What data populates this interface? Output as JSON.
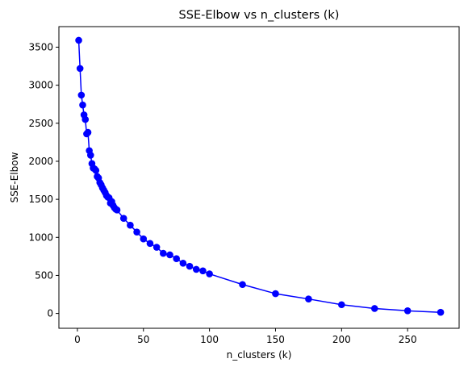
{
  "chart_data": {
    "type": "line",
    "title": "SSE-Elbow vs n_clusters (k)",
    "xlabel": "n_clusters (k)",
    "ylabel": "SSE-Elbow",
    "xlim": [
      -14,
      289
    ],
    "ylim": [
      -195,
      3770
    ],
    "xticks": [
      0,
      50,
      100,
      150,
      200,
      250
    ],
    "yticks": [
      0,
      500,
      1000,
      1500,
      2000,
      2500,
      3000,
      3500
    ],
    "grid": false,
    "legend": "none",
    "series": [
      {
        "color": "#0000ff",
        "marker": "circle",
        "x": [
          1,
          2,
          3,
          4,
          5,
          6,
          7,
          8,
          9,
          10,
          11,
          12,
          13,
          14,
          15,
          16,
          17,
          18,
          19,
          20,
          21,
          22,
          23,
          24,
          25,
          26,
          27,
          28,
          29,
          30,
          35,
          40,
          45,
          50,
          55,
          60,
          65,
          70,
          75,
          80,
          85,
          90,
          95,
          100,
          125,
          150,
          175,
          200,
          225,
          250,
          275
        ],
        "y": [
          3590,
          3220,
          2870,
          2740,
          2610,
          2550,
          2360,
          2380,
          2140,
          2080,
          1970,
          1910,
          1900,
          1880,
          1800,
          1780,
          1720,
          1690,
          1650,
          1620,
          1590,
          1550,
          1530,
          1520,
          1450,
          1470,
          1420,
          1390,
          1370,
          1360,
          1250,
          1160,
          1070,
          980,
          920,
          870,
          790,
          770,
          720,
          660,
          620,
          580,
          560,
          520,
          380,
          260,
          190,
          115,
          65,
          35,
          15
        ]
      }
    ]
  }
}
